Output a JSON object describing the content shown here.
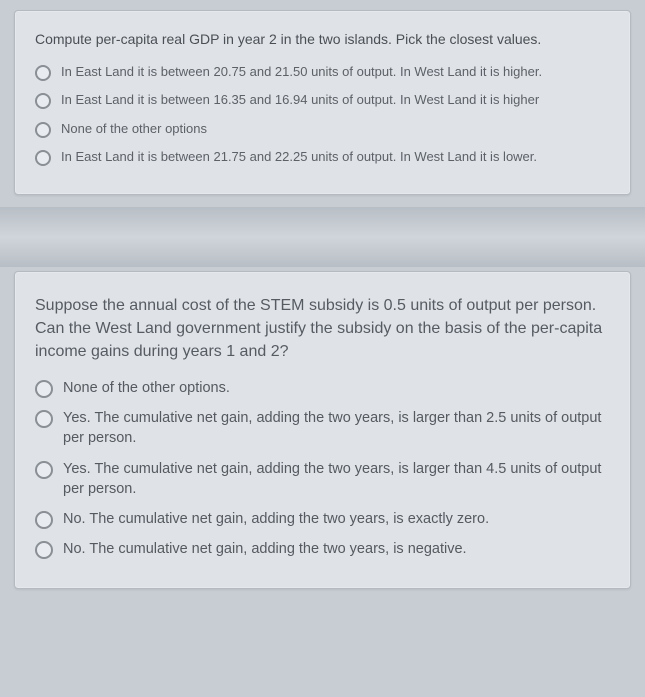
{
  "colors": {
    "page_bg": "#c8cdd4",
    "card_bg": "#dfe3e8",
    "card_border": "#b5bac0",
    "text_primary": "#4a4f55",
    "text_option": "#5c6167",
    "radio_border": "#8a8f95"
  },
  "q1": {
    "prompt": "Compute per-capita real GDP in year 2 in the two islands. Pick the closest values.",
    "options": [
      "In East Land it is between 20.75 and 21.50 units of output. In West Land it is higher.",
      "In East Land it is between 16.35 and 16.94 units of output. In West Land it is higher",
      "None of the other options",
      "In East Land it is between 21.75 and 22.25 units of output. In West Land it is lower."
    ]
  },
  "q2": {
    "prompt": "Suppose the annual cost of the STEM subsidy is 0.5 units of output per person. Can the West Land government justify the subsidy on the basis of the per-capita income gains during years 1 and 2?",
    "options": [
      "None of the other options.",
      "Yes. The cumulative net gain, adding the two years, is larger than 2.5 units of output per person.",
      "Yes. The cumulative net gain, adding the two years, is larger than 4.5 units of output per person.",
      "No. The cumulative net gain, adding the two years, is exactly zero.",
      "No. The cumulative net gain, adding the two years, is negative."
    ]
  }
}
